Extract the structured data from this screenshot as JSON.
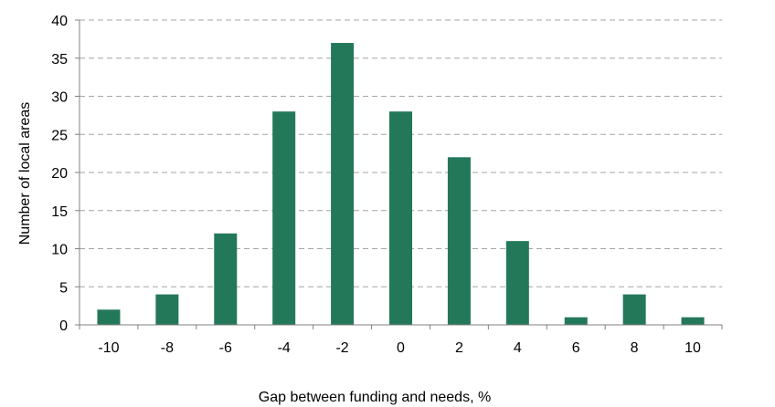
{
  "chart_data": {
    "type": "bar",
    "categories": [
      "-10",
      "-8",
      "-6",
      "-4",
      "-2",
      "0",
      "2",
      "4",
      "6",
      "8",
      "10"
    ],
    "values": [
      2,
      4,
      12,
      28,
      37,
      28,
      22,
      11,
      1,
      4,
      1
    ],
    "xlabel": "Gap between funding and needs, %",
    "ylabel": "Number of local areas",
    "ylim": [
      0,
      40
    ],
    "yticks": [
      0,
      5,
      10,
      15,
      20,
      25,
      30,
      35,
      40
    ],
    "grid": "horizontal dashed",
    "legend": "none",
    "bar_color": "#24785A"
  }
}
